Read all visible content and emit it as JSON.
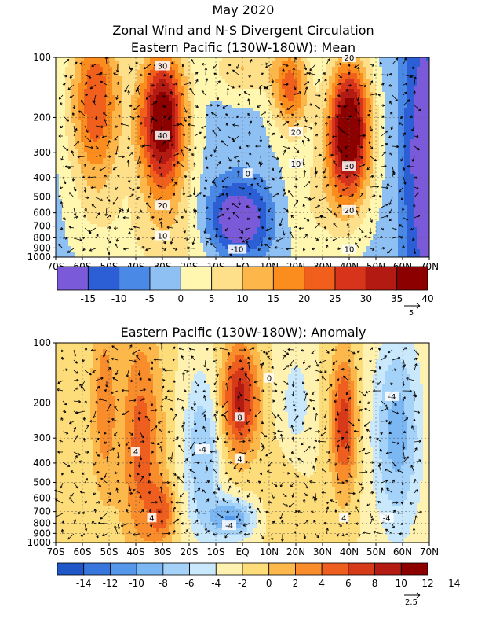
{
  "figure": {
    "title_line1": "May 2020",
    "title_line2": "Zonal Wind and N-S Divergent Circulation"
  },
  "palette": {
    "mean": [
      "#7a5ad8",
      "#2c5fd6",
      "#4a8ae6",
      "#8fc0f3",
      "#fff7b0",
      "#fee08a",
      "#fdb64a",
      "#fb8d1e",
      "#f0601c",
      "#d8341c",
      "#b21a12",
      "#8c0000"
    ],
    "anom": [
      "#1f57c8",
      "#3777dd",
      "#5597ea",
      "#7bb7f3",
      "#a5d2f8",
      "#c9e8fb",
      "#fff2b0",
      "#fddc7a",
      "#fdb84c",
      "#f98d2c",
      "#ee5e1f",
      "#d63a18",
      "#b21a12",
      "#8c0000"
    ]
  },
  "chart_data": [
    {
      "type": "heatmap",
      "title": "Eastern Pacific (130W-180W): Mean",
      "xlabel": "",
      "ylabel": "",
      "x_ticks": [
        "70S",
        "60S",
        "50S",
        "40S",
        "30S",
        "20S",
        "10S",
        "EQ",
        "10N",
        "20N",
        "30N",
        "40N",
        "50N",
        "60N",
        "70N"
      ],
      "x_range": [
        -70,
        70
      ],
      "y_ticks": [
        100,
        200,
        300,
        400,
        500,
        600,
        700,
        800,
        900,
        1000
      ],
      "y_range_hPa": [
        1000,
        100
      ],
      "y_scale": "log",
      "contour_labels": [
        {
          "text": "30",
          "lat": -30,
          "p": 110
        },
        {
          "text": "40",
          "lat": -30,
          "p": 245
        },
        {
          "text": "20",
          "lat": -30,
          "p": 550
        },
        {
          "text": "10",
          "lat": -30,
          "p": 780
        },
        {
          "text": "-10",
          "lat": -2,
          "p": 910
        },
        {
          "text": "0",
          "lat": 2,
          "p": 380
        },
        {
          "text": "20",
          "lat": 20,
          "p": 235
        },
        {
          "text": "10",
          "lat": 20,
          "p": 340
        },
        {
          "text": "20",
          "lat": 40,
          "p": 100
        },
        {
          "text": "30",
          "lat": 40,
          "p": 350
        },
        {
          "text": "20",
          "lat": 40,
          "p": 580
        },
        {
          "text": "10",
          "lat": 40,
          "p": 910
        }
      ],
      "colorbar": {
        "labels": [
          "-15",
          "-10",
          "-5",
          "0",
          "5",
          "10",
          "15",
          "20",
          "25",
          "30",
          "35",
          "40"
        ],
        "reference_vector": "5"
      },
      "grid": true
    },
    {
      "type": "heatmap",
      "title": "Eastern Pacific (130W-180W): Anomaly",
      "xlabel": "",
      "ylabel": "",
      "x_ticks": [
        "70S",
        "60S",
        "50S",
        "40S",
        "30S",
        "20S",
        "10S",
        "EQ",
        "10N",
        "20N",
        "30N",
        "40N",
        "50N",
        "60N",
        "70N"
      ],
      "x_range": [
        -70,
        70
      ],
      "y_ticks": [
        100,
        200,
        300,
        400,
        500,
        600,
        700,
        800,
        900,
        1000
      ],
      "y_range_hPa": [
        1000,
        100
      ],
      "y_scale": "log",
      "contour_labels": [
        {
          "text": "0",
          "lat": 10,
          "p": 150
        },
        {
          "text": "8",
          "lat": -1,
          "p": 235
        },
        {
          "text": "4",
          "lat": -1,
          "p": 380
        },
        {
          "text": "-4",
          "lat": -15,
          "p": 340
        },
        {
          "text": "4",
          "lat": -40,
          "p": 350
        },
        {
          "text": "4",
          "lat": -34,
          "p": 750
        },
        {
          "text": "-4",
          "lat": -5,
          "p": 820
        },
        {
          "text": "4",
          "lat": 38,
          "p": 750
        },
        {
          "text": "-4",
          "lat": 54,
          "p": 750
        },
        {
          "text": "-4",
          "lat": 56,
          "p": 185
        }
      ],
      "colorbar": {
        "labels": [
          "-14",
          "-12",
          "-10",
          "-8",
          "-6",
          "-4",
          "-2",
          "0",
          "2",
          "4",
          "6",
          "8",
          "10",
          "12",
          "14"
        ],
        "reference_vector": "2.5"
      },
      "grid": true
    }
  ]
}
